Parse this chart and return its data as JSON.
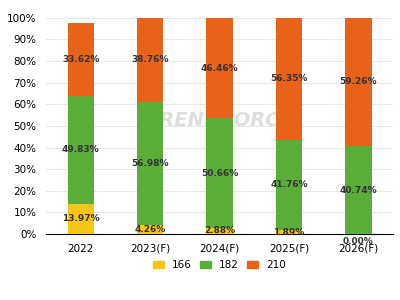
{
  "categories": [
    "2022",
    "2023(F)",
    "2024(F)",
    "2025(F)",
    "2026(F)"
  ],
  "series": {
    "166": [
      13.97,
      4.26,
      2.88,
      1.89,
      0.0
    ],
    "182": [
      49.83,
      56.98,
      50.66,
      41.76,
      40.74
    ],
    "210": [
      33.62,
      38.76,
      46.46,
      56.35,
      59.26
    ]
  },
  "colors": {
    "166": "#F5C518",
    "182": "#5BAD3A",
    "210": "#E8621A"
  },
  "bar_width": 0.38,
  "ylim": [
    0,
    105
  ],
  "yticks": [
    0,
    10,
    20,
    30,
    40,
    50,
    60,
    70,
    80,
    90,
    100
  ],
  "yticklabels": [
    "0%",
    "10%",
    "20%",
    "30%",
    "40%",
    "50%",
    "60%",
    "70%",
    "80%",
    "90%",
    "100%"
  ],
  "legend_labels": [
    "166",
    "182",
    "210"
  ],
  "label_fontsize": 6.5,
  "tick_fontsize": 7.5,
  "legend_fontsize": 7.5,
  "bg_color": "#ffffff",
  "plot_bg_color": "#ffffff",
  "watermark_text": "TRENDFORCE",
  "watermark_color": "#d0d0d0",
  "grid_color": "#e8e8e8"
}
